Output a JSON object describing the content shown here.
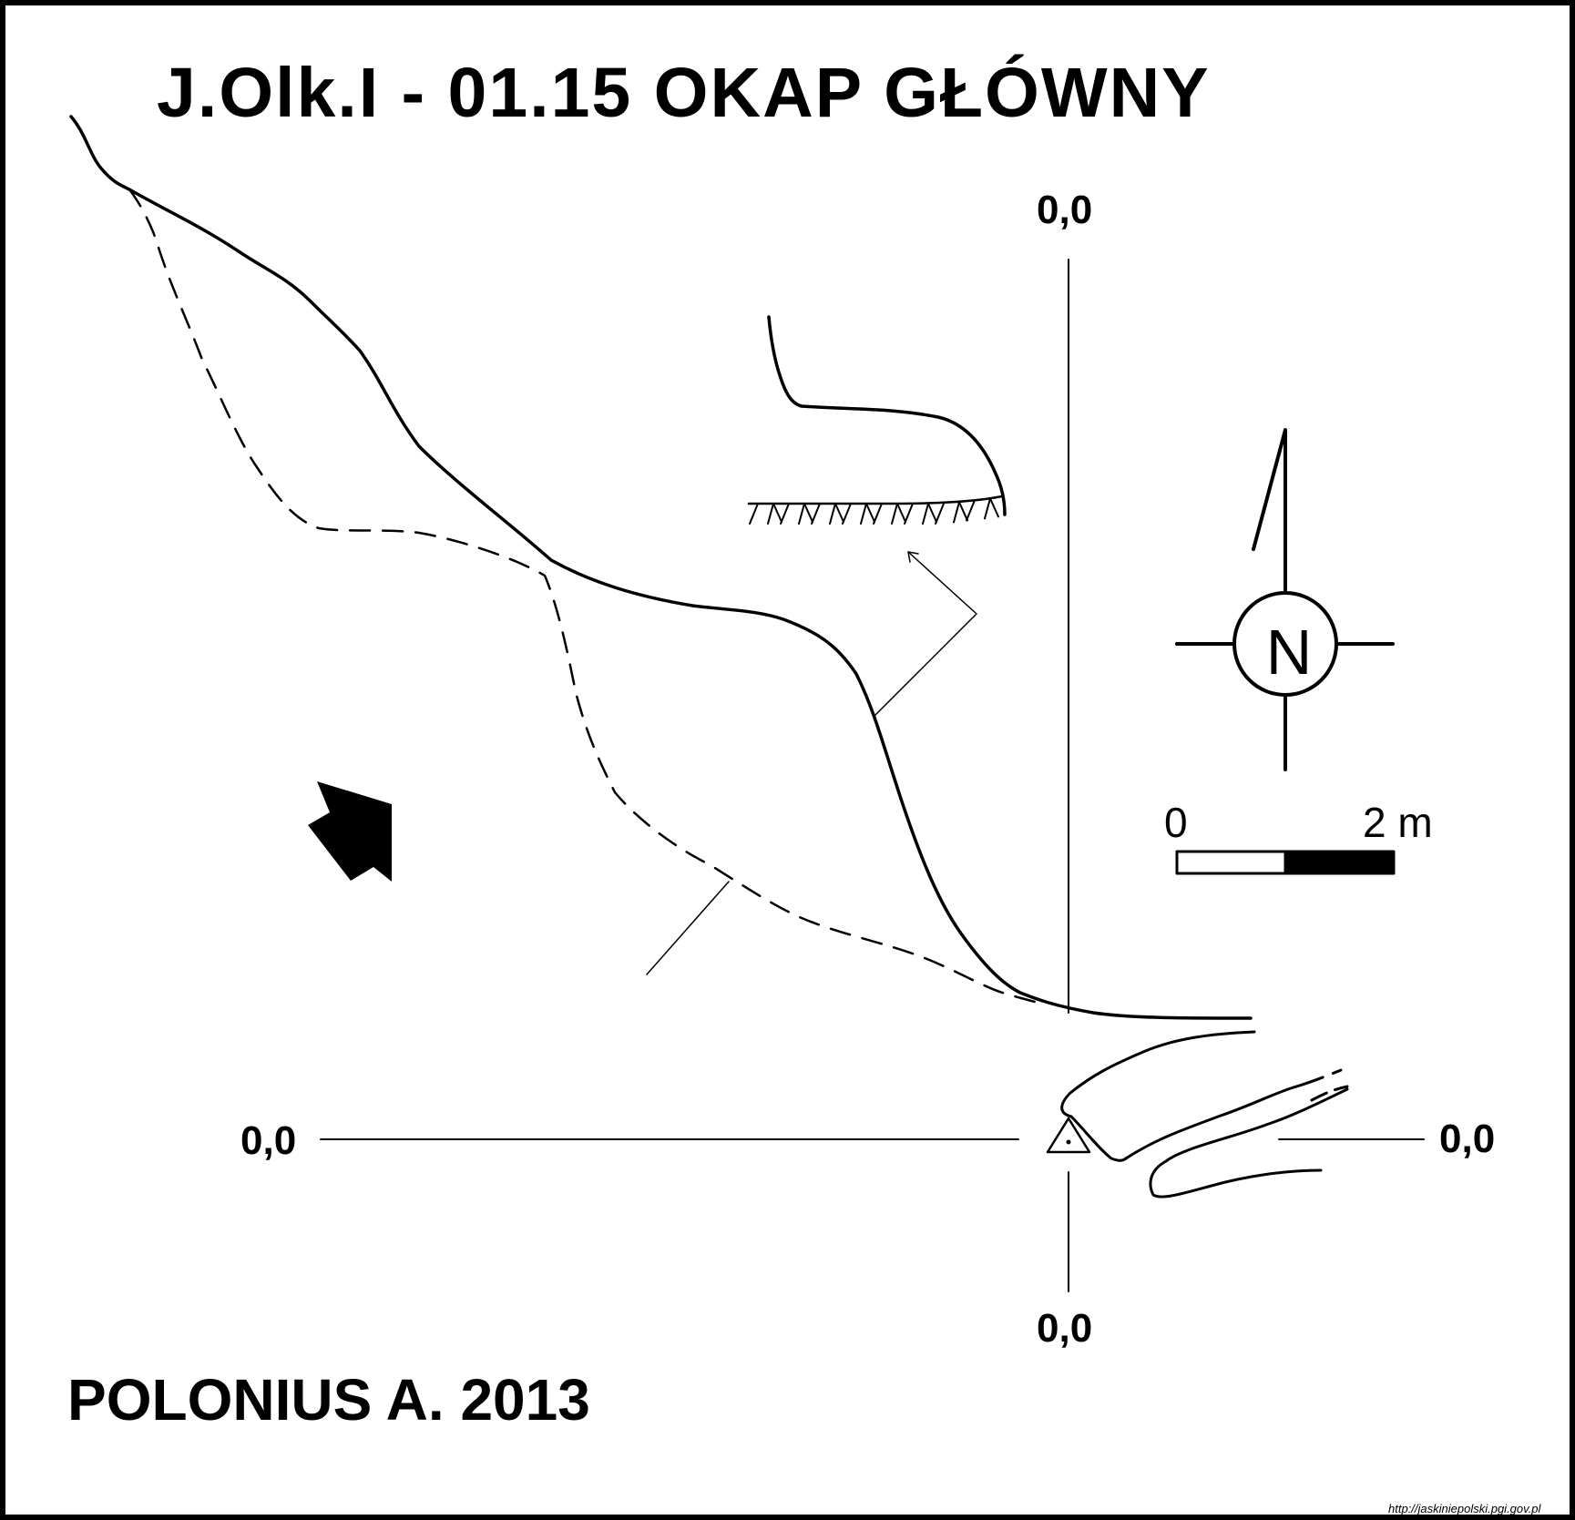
{
  "title": "J.Olk.I - 01.15  OKAP GŁÓWNY",
  "author_line": "POLONIUS A.  2013",
  "datum_labels": {
    "top": "0,0",
    "bottom": "0,0",
    "left": "0,0",
    "right": "0,0"
  },
  "north_arrow": {
    "letter": "N",
    "icon": "compass-rose-icon"
  },
  "scale_bar": {
    "start_label": "0",
    "end_label": "2 m",
    "segments": 2
  },
  "source_url": "http://jaskiniepolski.pgi.gov.pl",
  "colors": {
    "ink": "#000000",
    "paper": "#ffffff"
  }
}
